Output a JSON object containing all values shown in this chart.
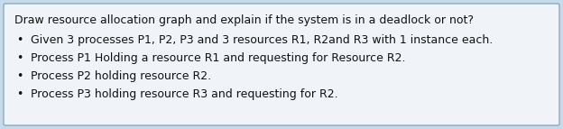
{
  "title": "Draw resource allocation graph and explain if the system is in a deadlock or not?",
  "bullets": [
    "Given 3 processes P1, P2, P3 and 3 resources R1, R2and R3 with 1 instance each.",
    "Process P1 Holding a resource R1 and requesting for Resource R2.",
    "Process P2 holding resource R2.",
    "Process P3 holding resource R3 and requesting for R2."
  ],
  "outer_bg": "#c8daea",
  "inner_bg": "#f0f4f8",
  "border_color": "#8aaabb",
  "text_color": "#111111",
  "title_fontsize": 9.0,
  "bullet_fontsize": 9.0,
  "fig_width": 6.24,
  "fig_height": 1.43,
  "dpi": 100
}
